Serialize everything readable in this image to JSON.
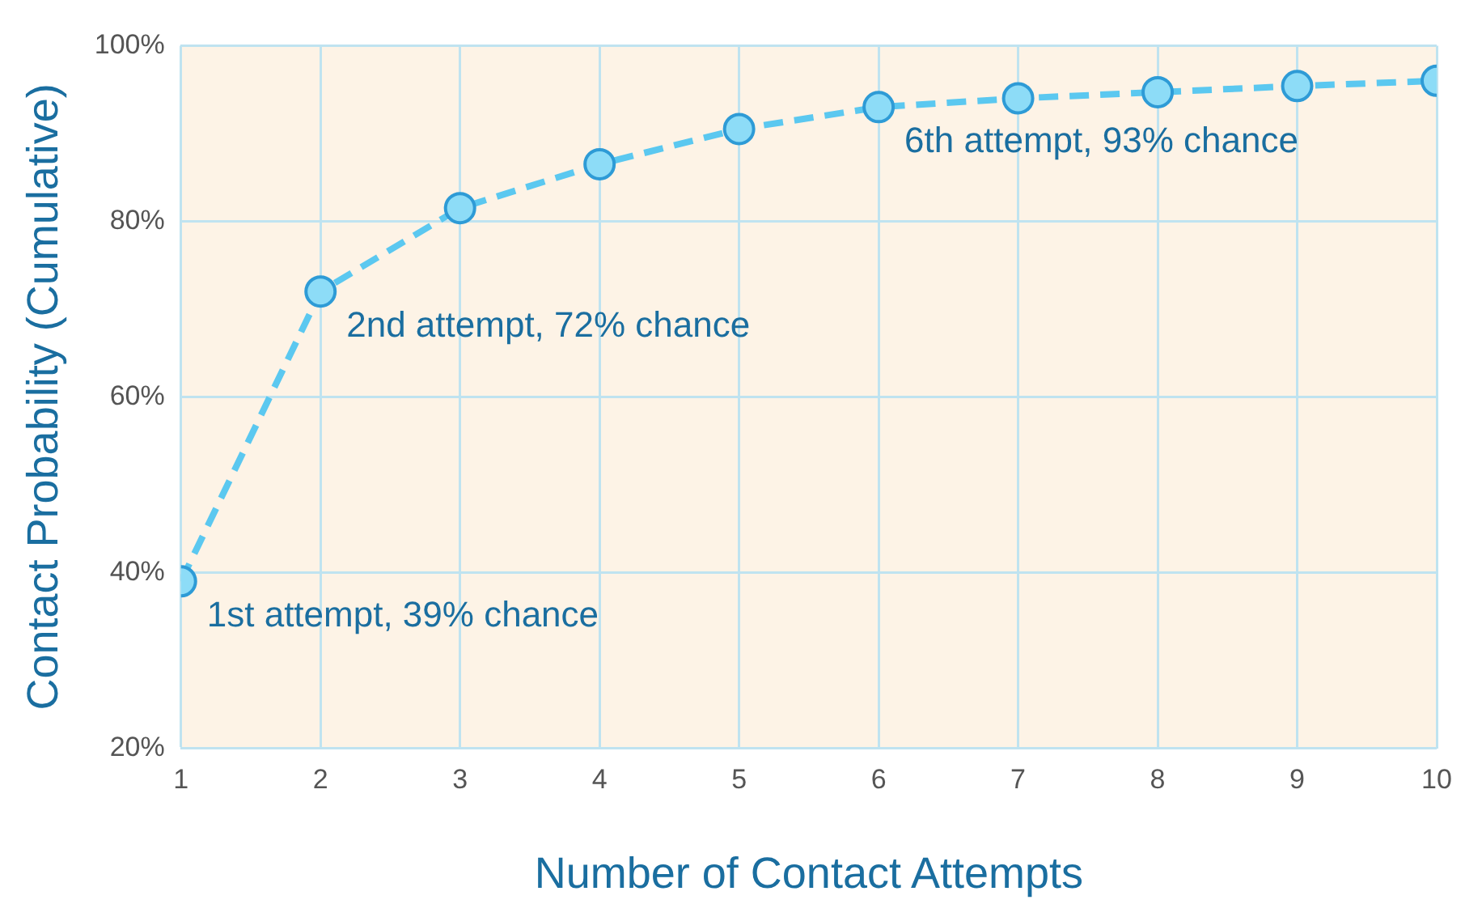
{
  "chart_data": {
    "type": "line",
    "xlabel": "Number of Contact Attempts",
    "ylabel": "Contact Probability (Cumulative)",
    "x": [
      1,
      2,
      3,
      4,
      5,
      6,
      7,
      8,
      9,
      10
    ],
    "series": [
      {
        "color": "#5bc8f0",
        "values": [
          39,
          72,
          81.5,
          86.5,
          90.5,
          93,
          94,
          94.7,
          95.4,
          96
        ]
      }
    ],
    "xlim": [
      1,
      10
    ],
    "xticks": [
      1,
      2,
      3,
      4,
      5,
      6,
      7,
      8,
      9,
      10
    ],
    "ylim": [
      20,
      100
    ],
    "yticks": [
      {
        "value": 20,
        "label": "20%"
      },
      {
        "value": 40,
        "label": "40%"
      },
      {
        "value": 60,
        "label": "60%"
      },
      {
        "value": 80,
        "label": "80%"
      },
      {
        "value": 100,
        "label": "100%"
      }
    ],
    "grid": true,
    "marker": "circle",
    "line_style": "dashed",
    "annotations": [
      {
        "text": "1st attempt, 39% chance",
        "x": 1,
        "y": 39
      },
      {
        "text": "2nd attempt, 72% chance",
        "x": 2,
        "y": 72
      },
      {
        "text": "6th attempt, 93% chance",
        "x": 6,
        "y": 93
      }
    ]
  }
}
